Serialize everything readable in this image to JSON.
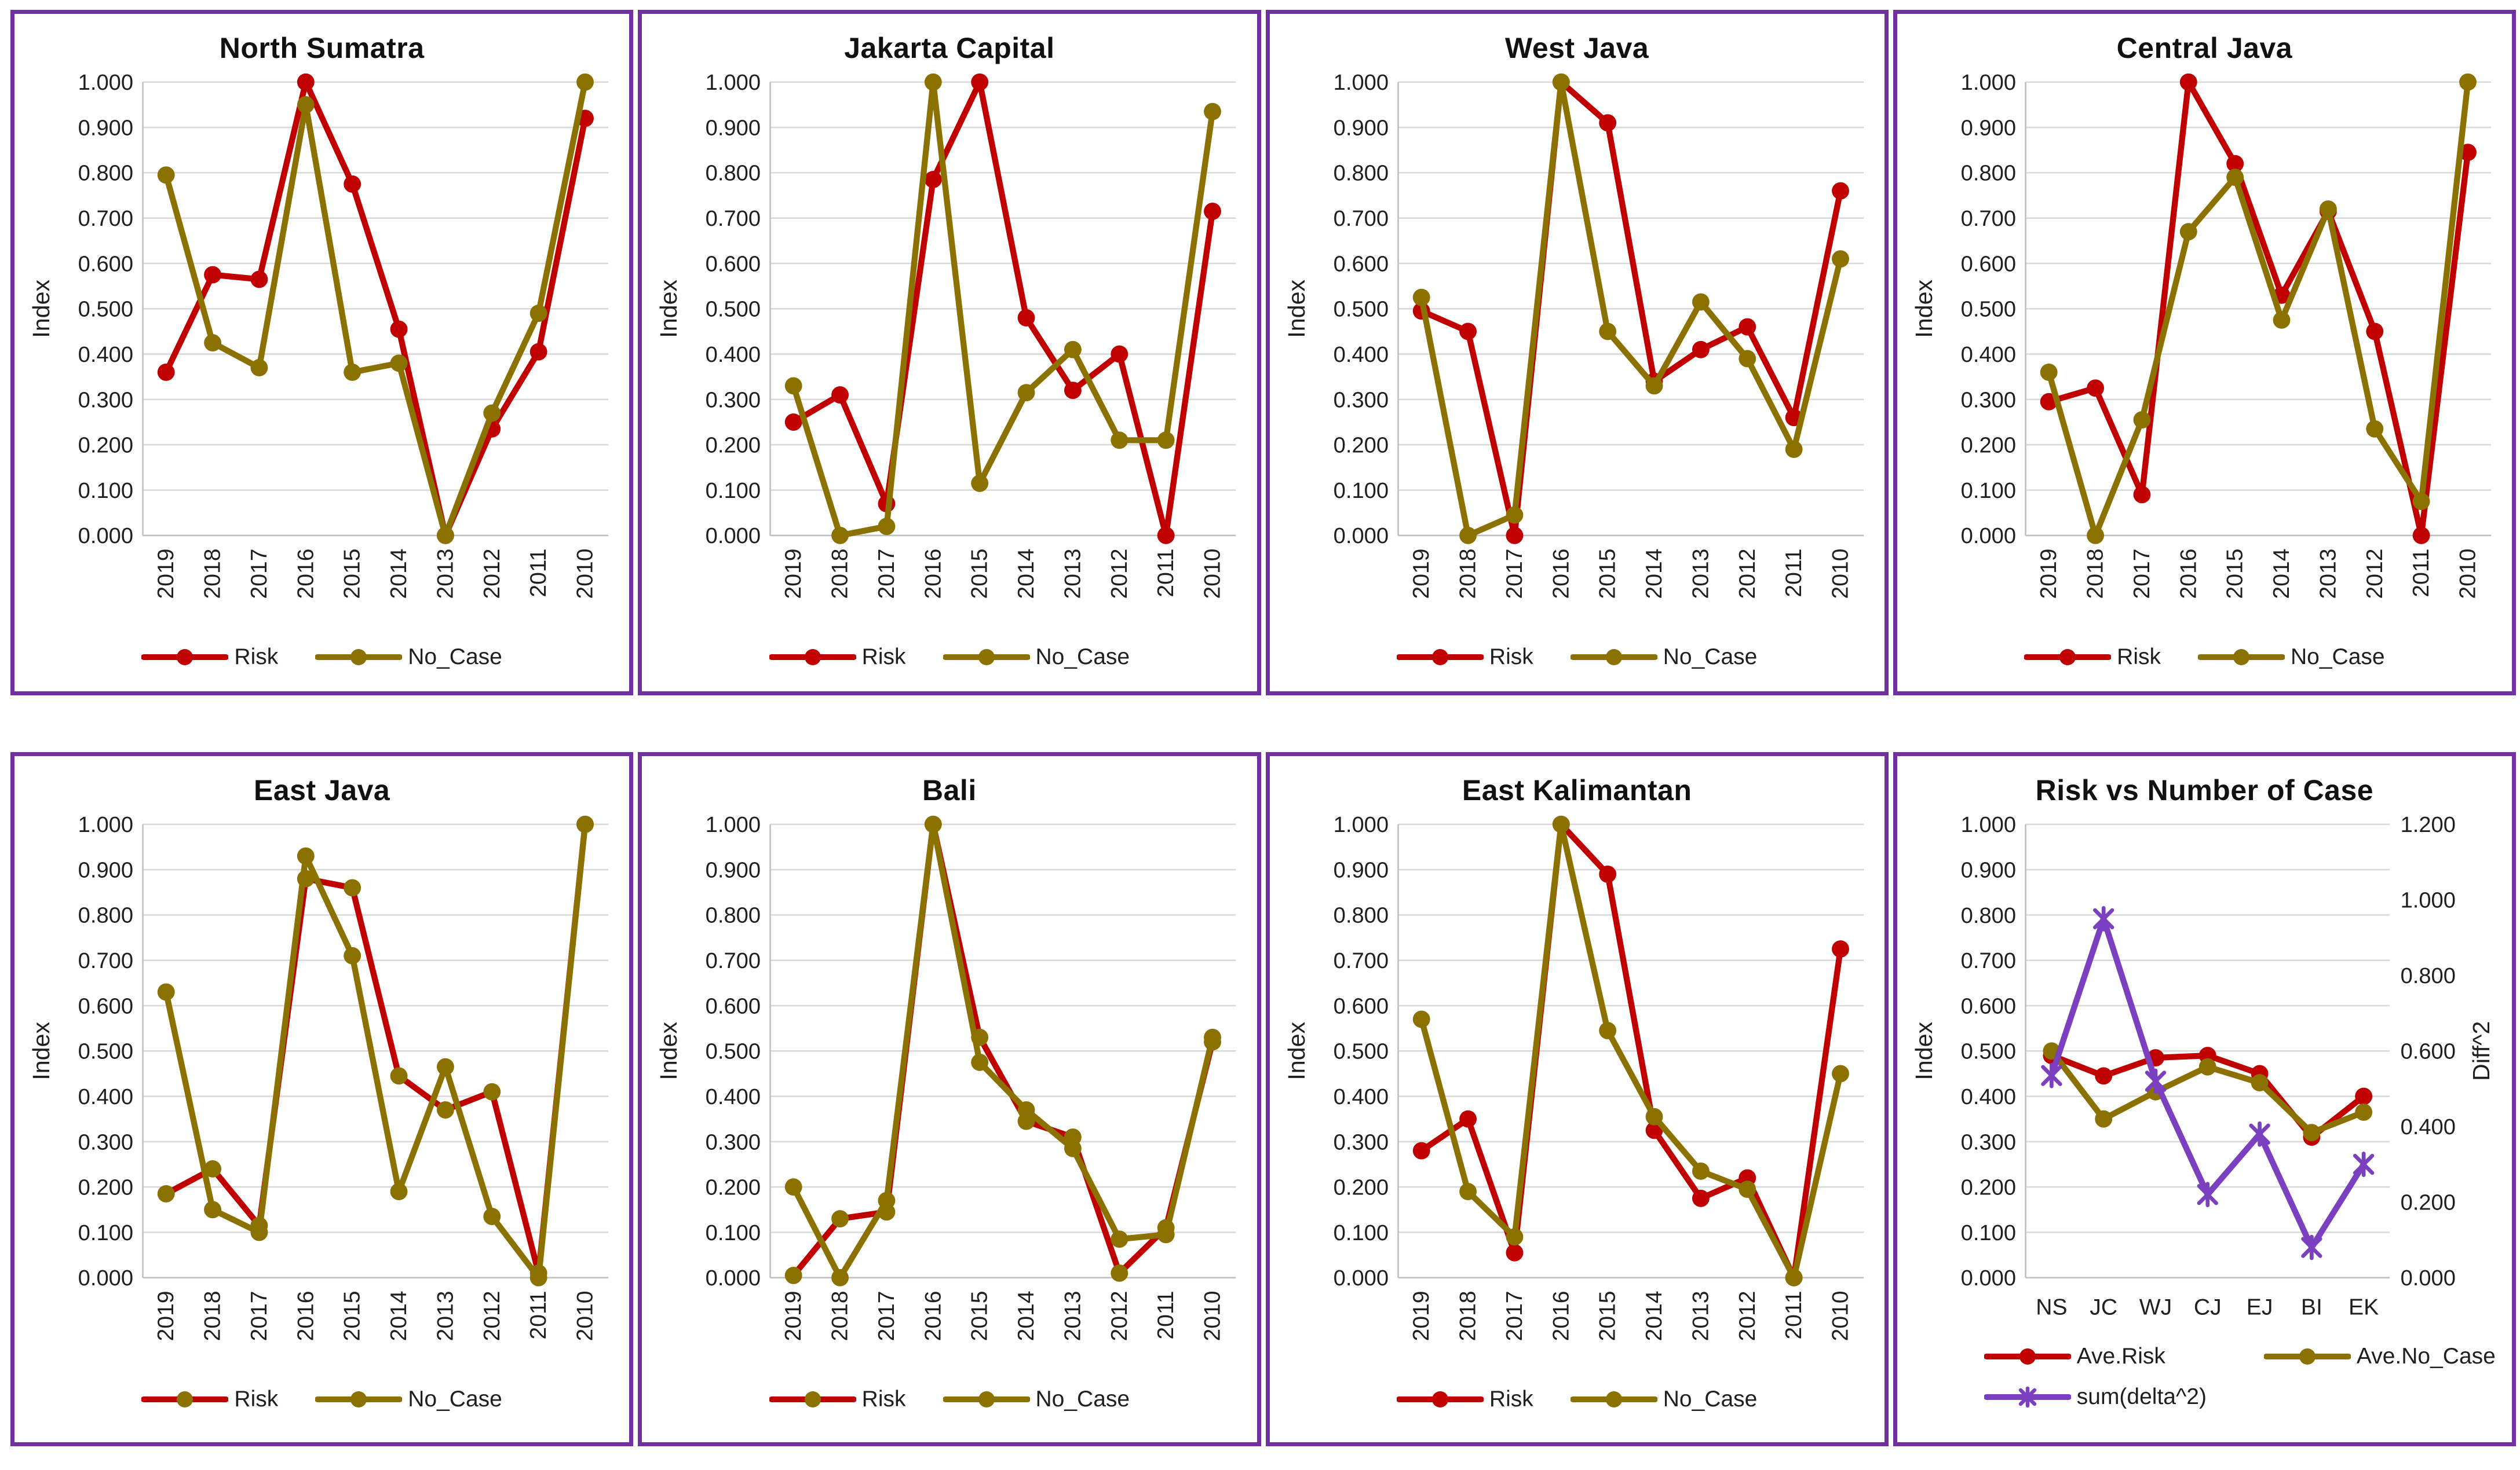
{
  "page": {
    "background": "#ffffff",
    "panel_border_color": "#7030A0"
  },
  "colors": {
    "risk": "#C00000",
    "no_case": "#8A7100",
    "delta": "#7B40BF",
    "grid": "#D9D9D9",
    "axis": "#BFBFBF",
    "text": "#1F1F1F"
  },
  "chart_data": [
    {
      "type": "line",
      "title": "North Sumatra",
      "ylabel": "Index",
      "ylim": [
        0,
        1
      ],
      "ytick_labels": [
        "0.000",
        "0.100",
        "0.200",
        "0.300",
        "0.400",
        "0.500",
        "0.600",
        "0.700",
        "0.800",
        "0.900",
        "1.000"
      ],
      "categories": [
        "2019",
        "2018",
        "2017",
        "2016",
        "2015",
        "2014",
        "2013",
        "2012",
        "2011",
        "2010"
      ],
      "x_label_rotation": 90,
      "grid": "horizontal",
      "legend_position": "bottom",
      "series": [
        {
          "name": "Risk",
          "color_key": "risk",
          "marker": "circle",
          "marker_color_key": "risk",
          "values": [
            0.36,
            0.575,
            0.565,
            1.0,
            0.775,
            0.455,
            0.0,
            0.235,
            0.405,
            0.92
          ]
        },
        {
          "name": "No_Case",
          "color_key": "no_case",
          "marker": "circle",
          "marker_color_key": "no_case",
          "values": [
            0.795,
            0.425,
            0.37,
            0.95,
            0.36,
            0.38,
            0.0,
            0.27,
            0.49,
            1.0
          ]
        }
      ]
    },
    {
      "type": "line",
      "title": "Jakarta Capital",
      "ylabel": "Index",
      "ylim": [
        0,
        1
      ],
      "ytick_labels": [
        "0.000",
        "0.100",
        "0.200",
        "0.300",
        "0.400",
        "0.500",
        "0.600",
        "0.700",
        "0.800",
        "0.900",
        "1.000"
      ],
      "categories": [
        "2019",
        "2018",
        "2017",
        "2016",
        "2015",
        "2014",
        "2013",
        "2012",
        "2011",
        "2010"
      ],
      "x_label_rotation": 90,
      "grid": "horizontal",
      "legend_position": "bottom",
      "series": [
        {
          "name": "Risk",
          "color_key": "risk",
          "marker": "circle",
          "marker_color_key": "risk",
          "values": [
            0.25,
            0.31,
            0.07,
            0.785,
            1.0,
            0.48,
            0.32,
            0.4,
            0.0,
            0.715
          ]
        },
        {
          "name": "No_Case",
          "color_key": "no_case",
          "marker": "circle",
          "marker_color_key": "no_case",
          "values": [
            0.33,
            0.0,
            0.02,
            1.0,
            0.115,
            0.315,
            0.41,
            0.21,
            0.21,
            0.935
          ]
        }
      ]
    },
    {
      "type": "line",
      "title": "West Java",
      "ylabel": "Index",
      "ylim": [
        0,
        1
      ],
      "ytick_labels": [
        "0.000",
        "0.100",
        "0.200",
        "0.300",
        "0.400",
        "0.500",
        "0.600",
        "0.700",
        "0.800",
        "0.900",
        "1.000"
      ],
      "categories": [
        "2019",
        "2018",
        "2017",
        "2016",
        "2015",
        "2014",
        "2013",
        "2012",
        "2011",
        "2010"
      ],
      "x_label_rotation": 90,
      "grid": "horizontal",
      "legend_position": "bottom",
      "series": [
        {
          "name": "Risk",
          "color_key": "risk",
          "marker": "circle",
          "marker_color_key": "risk",
          "values": [
            0.495,
            0.45,
            0.0,
            1.0,
            0.91,
            0.34,
            0.41,
            0.46,
            0.26,
            0.76
          ]
        },
        {
          "name": "No_Case",
          "color_key": "no_case",
          "marker": "circle",
          "marker_color_key": "no_case",
          "values": [
            0.525,
            0.0,
            0.045,
            1.0,
            0.45,
            0.33,
            0.515,
            0.39,
            0.19,
            0.61
          ]
        }
      ]
    },
    {
      "type": "line",
      "title": "Central Java",
      "ylabel": "Index",
      "ylim": [
        0,
        1
      ],
      "ytick_labels": [
        "0.000",
        "0.100",
        "0.200",
        "0.300",
        "0.400",
        "0.500",
        "0.600",
        "0.700",
        "0.800",
        "0.900",
        "1.000"
      ],
      "categories": [
        "2019",
        "2018",
        "2017",
        "2016",
        "2015",
        "2014",
        "2013",
        "2012",
        "2011",
        "2010"
      ],
      "x_label_rotation": 90,
      "grid": "horizontal",
      "legend_position": "bottom",
      "series": [
        {
          "name": "Risk",
          "color_key": "risk",
          "marker": "circle",
          "marker_color_key": "risk",
          "values": [
            0.295,
            0.325,
            0.09,
            1.0,
            0.82,
            0.53,
            0.715,
            0.45,
            0.0,
            0.845
          ]
        },
        {
          "name": "No_Case",
          "color_key": "no_case",
          "marker": "circle",
          "marker_color_key": "no_case",
          "values": [
            0.36,
            0.0,
            0.255,
            0.67,
            0.79,
            0.475,
            0.72,
            0.235,
            0.075,
            1.0
          ]
        }
      ]
    },
    {
      "type": "line",
      "title": "East Java",
      "ylabel": "Index",
      "ylim": [
        0,
        1
      ],
      "ytick_labels": [
        "0.000",
        "0.100",
        "0.200",
        "0.300",
        "0.400",
        "0.500",
        "0.600",
        "0.700",
        "0.800",
        "0.900",
        "1.000"
      ],
      "categories": [
        "2019",
        "2018",
        "2017",
        "2016",
        "2015",
        "2014",
        "2013",
        "2012",
        "2011",
        "2010"
      ],
      "x_label_rotation": 90,
      "grid": "horizontal",
      "legend_position": "bottom",
      "series": [
        {
          "name": "Risk",
          "color_key": "risk",
          "marker": "circle",
          "marker_color_key": "no_case",
          "values": [
            0.185,
            0.24,
            0.115,
            0.88,
            0.86,
            0.445,
            0.37,
            0.41,
            0.01,
            1.0
          ]
        },
        {
          "name": "No_Case",
          "color_key": "no_case",
          "marker": "circle",
          "marker_color_key": "no_case",
          "values": [
            0.63,
            0.15,
            0.1,
            0.93,
            0.71,
            0.19,
            0.465,
            0.135,
            0.0,
            1.0
          ]
        }
      ]
    },
    {
      "type": "line",
      "title": "Bali",
      "ylabel": "Index",
      "ylim": [
        0,
        1
      ],
      "ytick_labels": [
        "0.000",
        "0.100",
        "0.200",
        "0.300",
        "0.400",
        "0.500",
        "0.600",
        "0.700",
        "0.800",
        "0.900",
        "1.000"
      ],
      "categories": [
        "2019",
        "2018",
        "2017",
        "2016",
        "2015",
        "2014",
        "2013",
        "2012",
        "2011",
        "2010"
      ],
      "x_label_rotation": 90,
      "grid": "horizontal",
      "legend_position": "bottom",
      "series": [
        {
          "name": "Risk",
          "color_key": "risk",
          "marker": "circle",
          "marker_color_key": "no_case",
          "values": [
            0.005,
            0.13,
            0.145,
            1.0,
            0.53,
            0.345,
            0.31,
            0.01,
            0.11,
            0.52
          ]
        },
        {
          "name": "No_Case",
          "color_key": "no_case",
          "marker": "circle",
          "marker_color_key": "no_case",
          "values": [
            0.2,
            0.0,
            0.17,
            1.0,
            0.475,
            0.37,
            0.285,
            0.085,
            0.095,
            0.53
          ]
        }
      ]
    },
    {
      "type": "line",
      "title": "East Kalimantan",
      "ylabel": "Index",
      "ylim": [
        0,
        1
      ],
      "ytick_labels": [
        "0.000",
        "0.100",
        "0.200",
        "0.300",
        "0.400",
        "0.500",
        "0.600",
        "0.700",
        "0.800",
        "0.900",
        "1.000"
      ],
      "categories": [
        "2019",
        "2018",
        "2017",
        "2016",
        "2015",
        "2014",
        "2013",
        "2012",
        "2011",
        "2010"
      ],
      "x_label_rotation": 90,
      "grid": "horizontal",
      "legend_position": "bottom",
      "series": [
        {
          "name": "Risk",
          "color_key": "risk",
          "marker": "circle",
          "marker_color_key": "risk",
          "values": [
            0.28,
            0.35,
            0.055,
            1.0,
            0.89,
            0.325,
            0.175,
            0.22,
            0.0,
            0.725
          ]
        },
        {
          "name": "No_Case",
          "color_key": "no_case",
          "marker": "circle",
          "marker_color_key": "no_case",
          "values": [
            0.57,
            0.19,
            0.09,
            1.0,
            0.545,
            0.355,
            0.235,
            0.195,
            0.0,
            0.45
          ]
        }
      ]
    },
    {
      "type": "line",
      "title": "Risk vs Number of Case",
      "ylabel": "Index",
      "ylabel_right": "Diff^2",
      "ylim": [
        0,
        1
      ],
      "ylim_right": [
        0,
        1.2
      ],
      "ytick_labels": [
        "0.000",
        "0.100",
        "0.200",
        "0.300",
        "0.400",
        "0.500",
        "0.600",
        "0.700",
        "0.800",
        "0.900",
        "1.000"
      ],
      "ytick_labels_right": [
        "0.000",
        "0.200",
        "0.400",
        "0.600",
        "0.800",
        "1.000",
        "1.200"
      ],
      "categories": [
        "NS",
        "JC",
        "WJ",
        "CJ",
        "EJ",
        "BI",
        "EK"
      ],
      "x_label_rotation": 0,
      "grid": "horizontal",
      "legend_position": "bottom",
      "series": [
        {
          "name": "Ave.Risk",
          "color_key": "risk",
          "marker": "circle",
          "marker_color_key": "risk",
          "values": [
            0.49,
            0.445,
            0.485,
            0.49,
            0.45,
            0.31,
            0.4
          ]
        },
        {
          "name": "Ave.No_Case",
          "color_key": "no_case",
          "marker": "circle",
          "marker_color_key": "no_case",
          "values": [
            0.5,
            0.35,
            0.41,
            0.465,
            0.43,
            0.32,
            0.365
          ]
        },
        {
          "name": "sum(delta^2)",
          "color_key": "delta",
          "marker": "star",
          "marker_color_key": "delta",
          "axis": "right",
          "values": [
            0.535,
            0.95,
            0.52,
            0.22,
            0.38,
            0.08,
            0.3
          ]
        }
      ]
    }
  ]
}
